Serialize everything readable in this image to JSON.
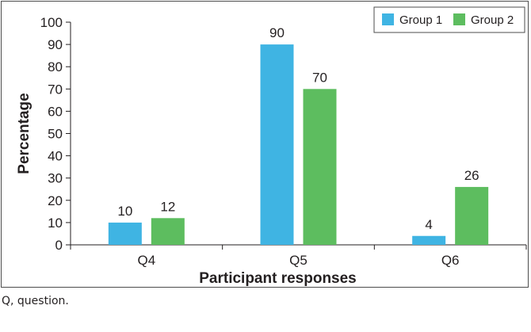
{
  "chart_data": {
    "type": "bar",
    "categories": [
      "Q4",
      "Q5",
      "Q6"
    ],
    "series": [
      {
        "name": "Group 1",
        "color": "#3fb4e3",
        "values": [
          10,
          90,
          4
        ]
      },
      {
        "name": "Group 2",
        "color": "#5dbd5f",
        "values": [
          12,
          70,
          26
        ]
      }
    ],
    "xlabel": "Participant responses",
    "ylabel": "Percentage",
    "ylim": [
      0,
      100
    ],
    "yticks": [
      0,
      10,
      20,
      30,
      40,
      50,
      60,
      70,
      80,
      90,
      100
    ],
    "grid": false,
    "legend_position": "top-right",
    "data_labels": true
  },
  "footnote": "Q, question."
}
